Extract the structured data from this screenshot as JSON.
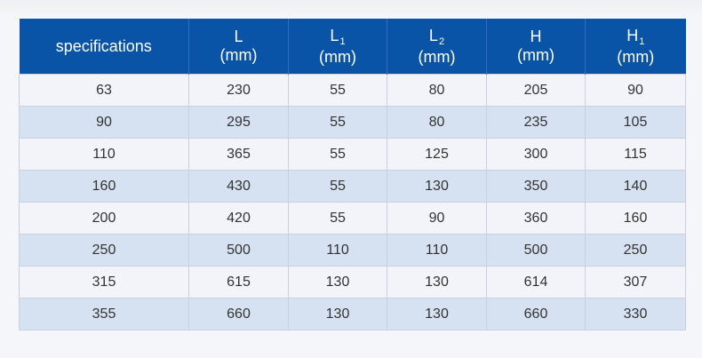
{
  "table": {
    "headers": [
      {
        "label": "specifications",
        "sub": "",
        "unit": ""
      },
      {
        "label": "L",
        "sub": "",
        "unit": "(mm)"
      },
      {
        "label": "L",
        "sub": "1",
        "unit": "(mm)"
      },
      {
        "label": "L",
        "sub": "2",
        "unit": "(mm)"
      },
      {
        "label": "H",
        "sub": "",
        "unit": "(mm)"
      },
      {
        "label": "H",
        "sub": "1",
        "unit": "(mm)"
      }
    ],
    "rows": [
      [
        "63",
        "230",
        "55",
        "80",
        "205",
        "90"
      ],
      [
        "90",
        "295",
        "55",
        "80",
        "235",
        "105"
      ],
      [
        "110",
        "365",
        "55",
        "125",
        "300",
        "115"
      ],
      [
        "160",
        "430",
        "55",
        "130",
        "350",
        "140"
      ],
      [
        "200",
        "420",
        "55",
        "90",
        "360",
        "160"
      ],
      [
        "250",
        "500",
        "110",
        "110",
        "500",
        "250"
      ],
      [
        "315",
        "615",
        "130",
        "130",
        "614",
        "307"
      ],
      [
        "355",
        "660",
        "130",
        "130",
        "660",
        "330"
      ]
    ]
  },
  "colors": {
    "header_bg": "#0a54a8",
    "row_odd": "#f3f4f9",
    "row_even": "#d6e2f1",
    "text": "#333333"
  }
}
